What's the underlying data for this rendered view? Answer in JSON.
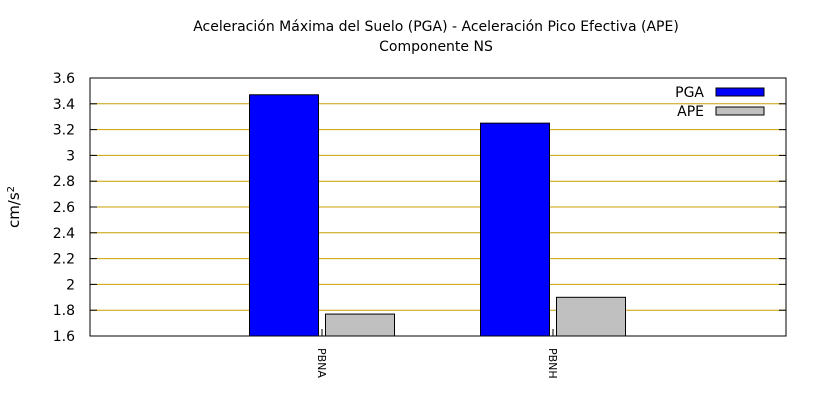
{
  "chart_data": {
    "type": "bar",
    "title": "Aceleración Máxima del Suelo (PGA) -  Aceleración Pico Efectiva (APE)",
    "subtitle": "Componente NS",
    "xlabel": "",
    "ylabel": "cm/s",
    "ylabel_superscript": "2",
    "categories": [
      "PBNA",
      "PBNH"
    ],
    "series": [
      {
        "name": "PGA",
        "values": [
          3.47,
          3.25
        ],
        "color": "#0000ff"
      },
      {
        "name": "APE",
        "values": [
          1.77,
          1.9
        ],
        "color": "#c0c0c0"
      }
    ],
    "ylim": [
      1.6,
      3.6
    ],
    "yticks": [
      "1.6",
      "1.8",
      "2",
      "2.2",
      "2.4",
      "2.6",
      "2.8",
      "3",
      "3.2",
      "3.4",
      "3.6"
    ],
    "grid": true,
    "grid_color": "#c8a000",
    "legend_position": "top-right"
  }
}
